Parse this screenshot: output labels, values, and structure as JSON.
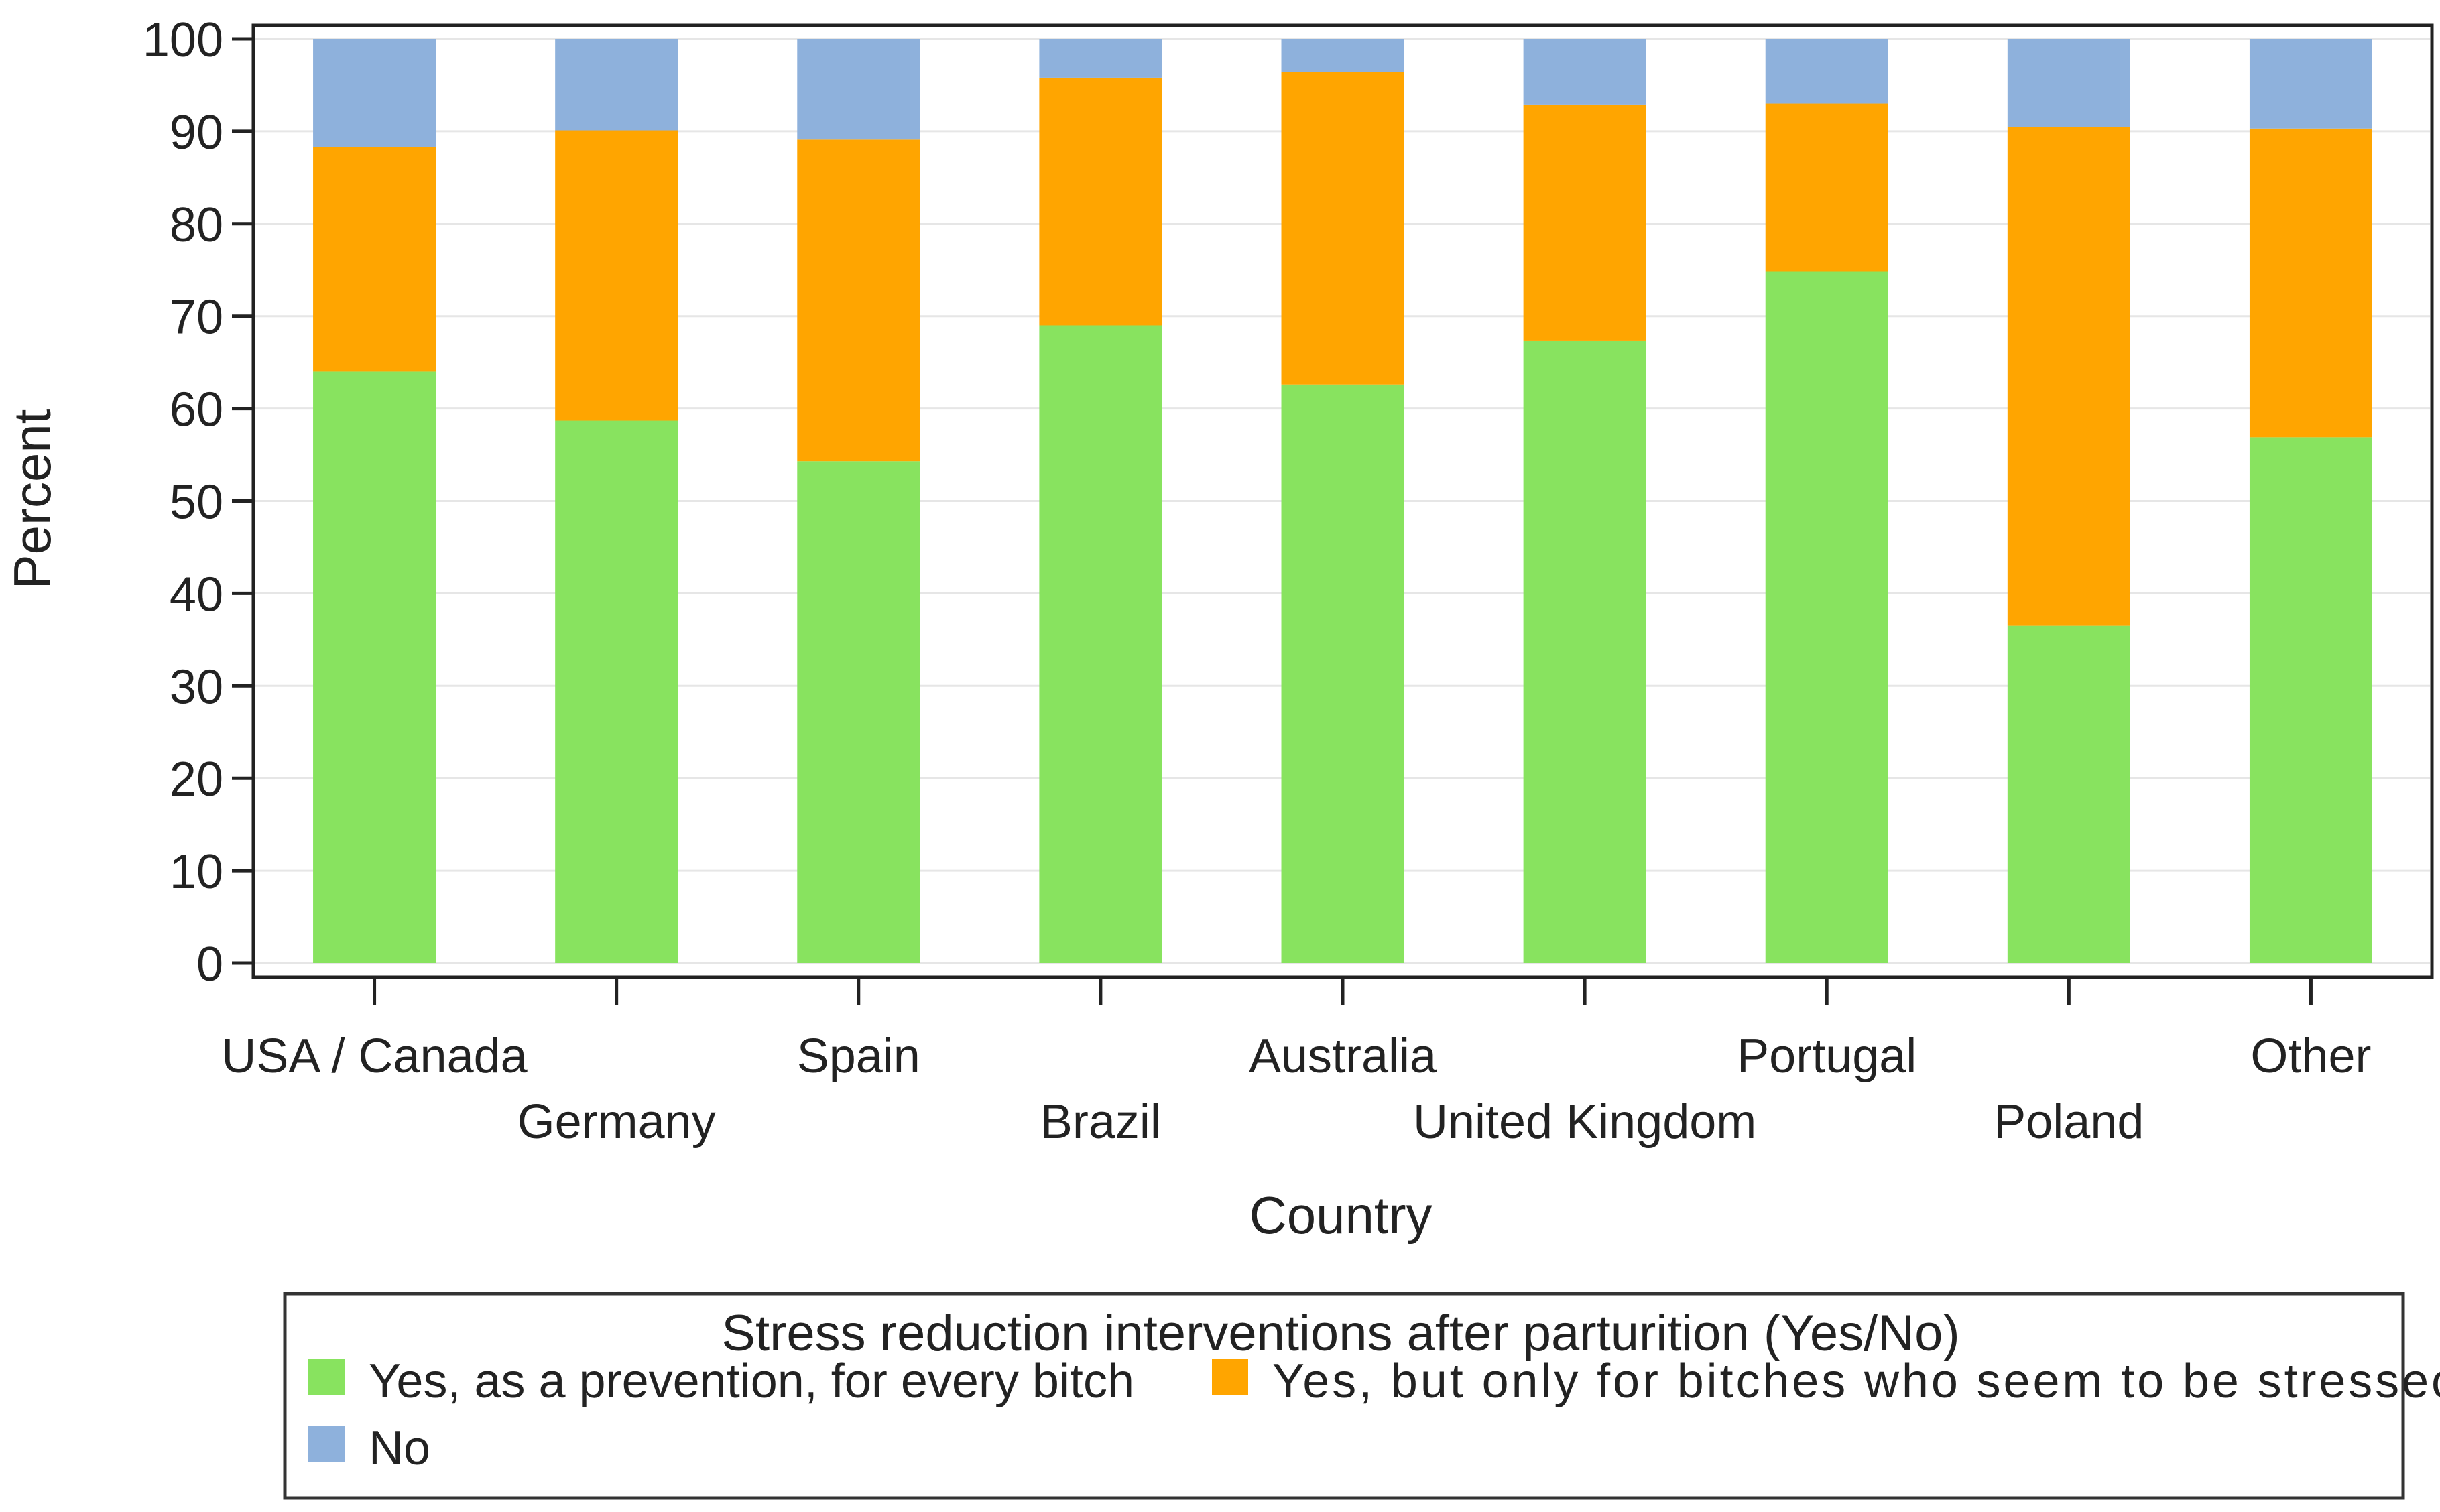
{
  "chart_data": {
    "type": "bar",
    "stacked": true,
    "categories": [
      "USA / Canada",
      "Germany",
      "Spain",
      "Brazil",
      "Australia",
      "United Kingdom",
      "Portugal",
      "Poland",
      "Other"
    ],
    "series": [
      {
        "name": "Yes, as a prevention, for every bitch",
        "color": "#88e35f",
        "values": [
          64.0,
          58.7,
          54.3,
          69.0,
          62.6,
          67.3,
          74.8,
          36.5,
          56.9
        ]
      },
      {
        "name": "Yes, but only for bitches who seem to be stressec",
        "color": "#ffa500",
        "values": [
          24.3,
          31.4,
          34.8,
          26.8,
          33.8,
          25.6,
          18.2,
          54.0,
          33.4
        ]
      },
      {
        "name": "No",
        "color": "#8eb1dc",
        "values": [
          11.7,
          9.9,
          10.9,
          4.2,
          3.6,
          7.1,
          7.0,
          9.5,
          9.7
        ]
      }
    ],
    "xlabel": "Country",
    "ylabel": "Percent",
    "ylim": [
      0,
      100
    ],
    "yticks": [
      0,
      10,
      20,
      30,
      40,
      50,
      60,
      70,
      80,
      90,
      100
    ],
    "grid": true,
    "legend": {
      "title": "Stress reduction interventions after parturition (Yes/No)",
      "placement": "bottom"
    }
  }
}
